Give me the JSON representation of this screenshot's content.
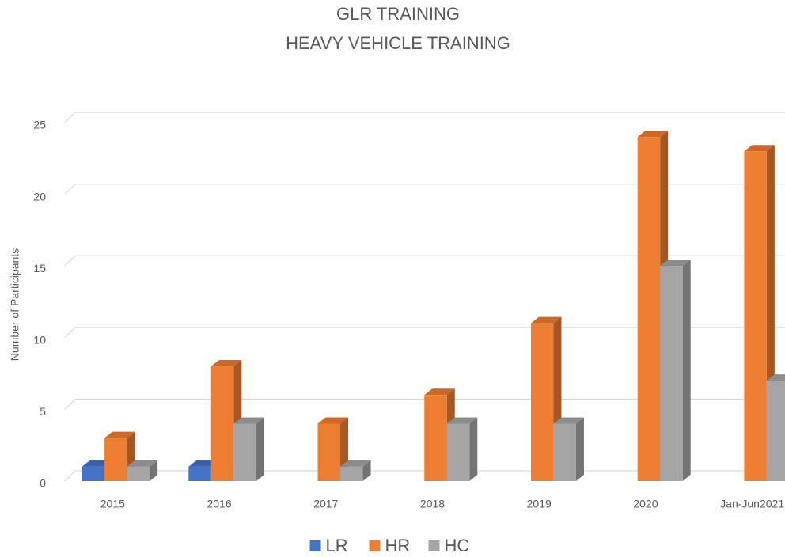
{
  "chart_data": {
    "type": "bar3d",
    "title": "GLR TRAINING",
    "subtitle": "HEAVY VEHICLE TRAINING",
    "y_label": "Number of Participants",
    "categories": [
      "2015",
      "2016",
      "2017",
      "2018",
      "2019",
      "2020",
      "Jan-Jun2021"
    ],
    "series": [
      {
        "name": "LR",
        "color": "#4472c4",
        "values": [
          1,
          1,
          0,
          0,
          0,
          0,
          0
        ]
      },
      {
        "name": "HR",
        "color": "#ed7d31",
        "values": [
          3,
          8,
          4,
          6,
          11,
          24,
          23
        ]
      },
      {
        "name": "HC",
        "color": "#a5a5a5",
        "values": [
          1,
          4,
          1,
          4,
          4,
          15,
          7
        ]
      }
    ],
    "ylim": [
      0,
      25
    ],
    "yticks": [
      0,
      5,
      10,
      15,
      20,
      25
    ],
    "grid": true,
    "legend": "bottom"
  }
}
